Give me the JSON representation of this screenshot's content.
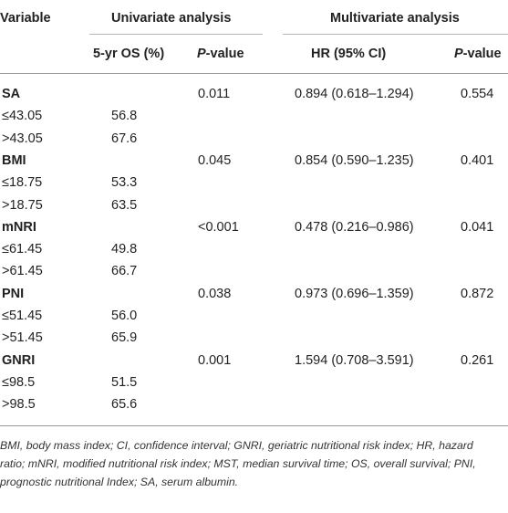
{
  "header": {
    "variable": "Variable",
    "univariate": "Univariate analysis",
    "multivariate": "Multivariate analysis",
    "os": "5-yr OS (%)",
    "p_italic": "P",
    "p_rest": "-value",
    "hr": "HR (95% CI)"
  },
  "rows": [
    {
      "label": "SA",
      "os": "",
      "p1": "0.011",
      "hr": "0.894 (0.618–1.294)",
      "p2": "0.554"
    },
    {
      "label": "≤43.05",
      "os": "56.8",
      "p1": "",
      "hr": "",
      "p2": ""
    },
    {
      "label": ">43.05",
      "os": "67.6",
      "p1": "",
      "hr": "",
      "p2": ""
    },
    {
      "label": "BMI",
      "os": "",
      "p1": "0.045",
      "hr": "0.854 (0.590–1.235)",
      "p2": "0.401"
    },
    {
      "label": "≤18.75",
      "os": "53.3",
      "p1": "",
      "hr": "",
      "p2": ""
    },
    {
      "label": ">18.75",
      "os": "63.5",
      "p1": "",
      "hr": "",
      "p2": ""
    },
    {
      "label": "mNRI",
      "os": "",
      "p1": "<0.001",
      "hr": "0.478 (0.216–0.986)",
      "p2": "0.041"
    },
    {
      "label": "≤61.45",
      "os": "49.8",
      "p1": "",
      "hr": "",
      "p2": ""
    },
    {
      "label": ">61.45",
      "os": "66.7",
      "p1": "",
      "hr": "",
      "p2": ""
    },
    {
      "label": "PNI",
      "os": "",
      "p1": "0.038",
      "hr": "0.973 (0.696–1.359)",
      "p2": "0.872"
    },
    {
      "label": "≤51.45",
      "os": "56.0",
      "p1": "",
      "hr": "",
      "p2": ""
    },
    {
      "label": ">51.45",
      "os": "65.9",
      "p1": "",
      "hr": "",
      "p2": ""
    },
    {
      "label": "GNRI",
      "os": "",
      "p1": "0.001",
      "hr": "1.594 (0.708–3.591)",
      "p2": "0.261"
    },
    {
      "label": "≤98.5",
      "os": "51.5",
      "p1": "",
      "hr": "",
      "p2": ""
    },
    {
      "label": ">98.5",
      "os": "65.6",
      "p1": "",
      "hr": "",
      "p2": ""
    }
  ],
  "footnote": "BMI, body mass index; CI, confidence interval; GNRI, geriatric nutritional risk index; HR, hazard ratio; mNRI, modified nutritional risk index; MST, median survival time; OS, overall survival; PNI, prognostic nutritional Index; SA, serum albumin."
}
